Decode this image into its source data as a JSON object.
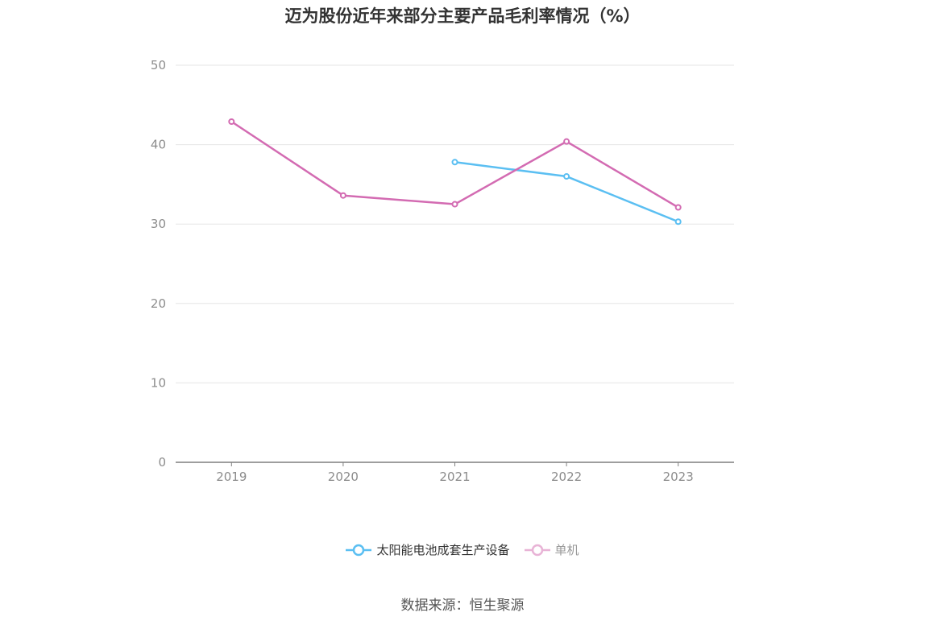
{
  "chart_data": {
    "type": "line",
    "title": "迈为股份近年来部分主要产品毛利率情况（%）",
    "categories": [
      "2019",
      "2020",
      "2021",
      "2022",
      "2023"
    ],
    "ylim": [
      0,
      50
    ],
    "yticks": [
      0,
      10,
      20,
      30,
      40,
      50
    ],
    "grid": true,
    "legend_position": "bottom",
    "series": [
      {
        "name": "太阳能电池成套生产设备",
        "color": "#5bbff2",
        "values": [
          null,
          null,
          37.8,
          36.0,
          30.3
        ]
      },
      {
        "name": "单机",
        "color": "#d36bb2",
        "values": [
          42.9,
          33.6,
          32.5,
          40.4,
          32.1
        ]
      }
    ],
    "source": "数据来源：恒生聚源"
  }
}
